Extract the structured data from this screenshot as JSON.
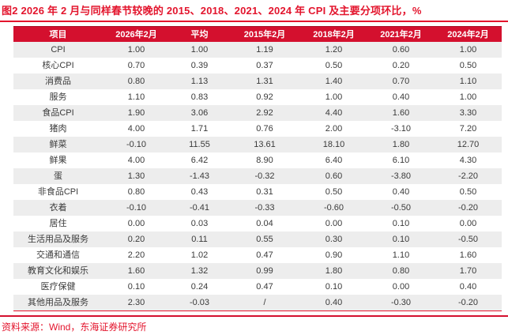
{
  "figure": {
    "title": "图2  2026 年 2 月与同样春节较晚的 2015、2018、2021、2024 年 CPI 及主要分项环比，%",
    "source": "资料来源：Wind，东海证券研究所"
  },
  "colors": {
    "accent_red": "#E3152D",
    "header_bg": "#D4102E",
    "row_alt_bg": "#EDEDED",
    "cell_text": "#3A3A3A",
    "header_text": "#FFFFFF"
  },
  "chart_data": {
    "type": "table",
    "title": "2026年2月与同样春节较晚的2015、2018、2021、2024年CPI及主要分项环比，%",
    "columns": [
      "项目",
      "2026年2月",
      "平均",
      "2015年2月",
      "2018年2月",
      "2021年2月",
      "2024年2月"
    ],
    "rows": [
      [
        "CPI",
        "1.00",
        "1.00",
        "1.19",
        "1.20",
        "0.60",
        "1.00"
      ],
      [
        "核心CPI",
        "0.70",
        "0.39",
        "0.37",
        "0.50",
        "0.20",
        "0.50"
      ],
      [
        "消费品",
        "0.80",
        "1.13",
        "1.31",
        "1.40",
        "0.70",
        "1.10"
      ],
      [
        "服务",
        "1.10",
        "0.83",
        "0.92",
        "1.00",
        "0.40",
        "1.00"
      ],
      [
        "食品CPI",
        "1.90",
        "3.06",
        "2.92",
        "4.40",
        "1.60",
        "3.30"
      ],
      [
        "猪肉",
        "4.00",
        "1.71",
        "0.76",
        "2.00",
        "-3.10",
        "7.20"
      ],
      [
        "鲜菜",
        "-0.10",
        "11.55",
        "13.61",
        "18.10",
        "1.80",
        "12.70"
      ],
      [
        "鲜果",
        "4.00",
        "6.42",
        "8.90",
        "6.40",
        "6.10",
        "4.30"
      ],
      [
        "蛋",
        "1.30",
        "-1.43",
        "-0.32",
        "0.60",
        "-3.80",
        "-2.20"
      ],
      [
        "非食品CPI",
        "0.80",
        "0.43",
        "0.31",
        "0.50",
        "0.40",
        "0.50"
      ],
      [
        "衣着",
        "-0.10",
        "-0.41",
        "-0.33",
        "-0.60",
        "-0.50",
        "-0.20"
      ],
      [
        "居住",
        "0.00",
        "0.03",
        "0.04",
        "0.00",
        "0.10",
        "0.00"
      ],
      [
        "生活用品及服务",
        "0.20",
        "0.11",
        "0.55",
        "0.30",
        "0.10",
        "-0.50"
      ],
      [
        "交通和通信",
        "2.20",
        "1.02",
        "0.47",
        "0.90",
        "1.10",
        "1.60"
      ],
      [
        "教育文化和娱乐",
        "1.60",
        "1.32",
        "0.99",
        "1.80",
        "0.80",
        "1.70"
      ],
      [
        "医疗保健",
        "0.10",
        "0.24",
        "0.47",
        "0.10",
        "0.00",
        "0.40"
      ],
      [
        "其他用品及服务",
        "2.30",
        "-0.03",
        "/",
        "0.40",
        "-0.30",
        "-0.20"
      ]
    ]
  }
}
